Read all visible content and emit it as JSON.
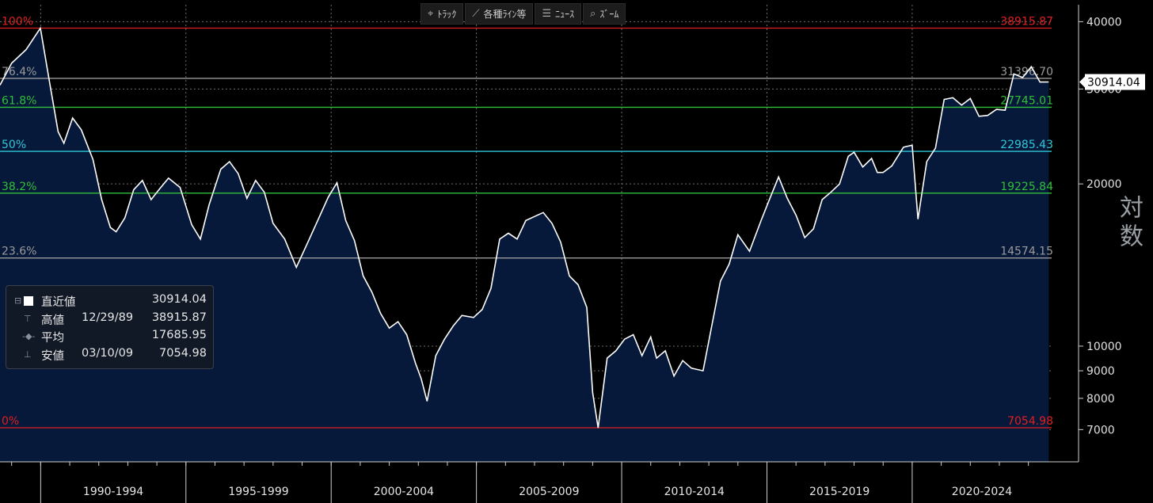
{
  "toolbar": [
    {
      "icon": "crosshair-icon",
      "glyph": "⌖",
      "label": "ﾄﾗｯｸ"
    },
    {
      "icon": "line-tool-icon",
      "glyph": "⟋",
      "label": "各種ﾗｲﾝ等"
    },
    {
      "icon": "news-icon",
      "glyph": "☰",
      "label": "ﾆｭｰｽ"
    },
    {
      "icon": "zoom-icon",
      "glyph": "⌕",
      "label": "ｽﾞｰﾑ"
    }
  ],
  "scale_label": "対数",
  "legend": {
    "last": {
      "label": "直近値",
      "value": "30914.04"
    },
    "high": {
      "label": "高値",
      "date": "12/29/89",
      "value": "38915.87"
    },
    "average": {
      "label": "平均",
      "value": "17685.95"
    },
    "low": {
      "label": "安値",
      "date": "03/10/09",
      "value": "7054.98"
    }
  },
  "chart_data": {
    "type": "area",
    "scale": "log",
    "ylim": [
      6100,
      43000
    ],
    "y_ticks": [
      40000,
      30000,
      20000,
      10000,
      9000,
      8000,
      7000
    ],
    "x_range": [
      1988.6,
      2024.8
    ],
    "x_period_labels": [
      "1990-1994",
      "1995-1999",
      "2000-2004",
      "2005-2009",
      "2010-2014",
      "2015-2019",
      "2020-2024"
    ],
    "last_value_label": "30914.04",
    "colors": {
      "background": "#000000",
      "area_fill": "#07193a",
      "line": "#ffffff"
    },
    "fibonacci_levels": [
      {
        "pct": "100%",
        "value": 38915.87,
        "value_label": "38915.87",
        "color": "#e02020"
      },
      {
        "pct": "76.4%",
        "value": 31396.7,
        "value_label": "31396.70",
        "color": "#9a9a9a"
      },
      {
        "pct": "61.8%",
        "value": 27745.01,
        "value_label": "27745.01",
        "color": "#2fbf3a"
      },
      {
        "pct": "50%",
        "value": 22985.43,
        "value_label": "22985.43",
        "color": "#2ec8d8"
      },
      {
        "pct": "38.2%",
        "value": 19225.84,
        "value_label": "19225.84",
        "color": "#2fbf3a"
      },
      {
        "pct": "23.6%",
        "value": 14574.15,
        "value_label": "14574.15",
        "color": "#9a9a9a"
      },
      {
        "pct": "0%",
        "value": 7054.98,
        "value_label": "7054.98",
        "color": "#e02020"
      }
    ],
    "series": [
      {
        "x": [
          1988.6,
          1989.0,
          1989.5,
          1989.99,
          1990.3,
          1990.6,
          1990.8,
          1991.1,
          1991.4,
          1991.8,
          1992.1,
          1992.4,
          1992.6,
          1992.9,
          1993.2,
          1993.5,
          1993.8,
          1994.1,
          1994.4,
          1994.8,
          1995.2,
          1995.5,
          1995.8,
          1996.2,
          1996.5,
          1996.8,
          1997.1,
          1997.4,
          1997.7,
          1998.0,
          1998.4,
          1998.8,
          1999.2,
          1999.6,
          1999.9,
          2000.2,
          2000.5,
          2000.8,
          2001.1,
          2001.4,
          2001.7,
          2002.0,
          2002.3,
          2002.6,
          2002.9,
          2003.1,
          2003.3,
          2003.6,
          2003.9,
          2004.2,
          2004.5,
          2004.9,
          2005.2,
          2005.5,
          2005.8,
          2006.1,
          2006.4,
          2006.7,
          2007.0,
          2007.3,
          2007.6,
          2007.9,
          2008.2,
          2008.5,
          2008.8,
          2009.0,
          2009.19,
          2009.5,
          2009.8,
          2010.1,
          2010.4,
          2010.7,
          2011.0,
          2011.2,
          2011.5,
          2011.8,
          2012.1,
          2012.4,
          2012.8,
          2013.1,
          2013.4,
          2013.7,
          2014.0,
          2014.4,
          2014.8,
          2015.1,
          2015.4,
          2015.7,
          2016.0,
          2016.3,
          2016.6,
          2016.9,
          2017.2,
          2017.5,
          2017.8,
          2018.0,
          2018.3,
          2018.6,
          2018.8,
          2019.0,
          2019.3,
          2019.7,
          2020.0,
          2020.2,
          2020.5,
          2020.8,
          2021.1,
          2021.4,
          2021.7,
          2022.0,
          2022.3,
          2022.6,
          2022.9,
          2023.2,
          2023.5,
          2023.8,
          2024.1,
          2024.4,
          2024.7
        ],
        "y": [
          30500,
          33500,
          35500,
          38915,
          31000,
          25000,
          23800,
          26500,
          25200,
          22200,
          18700,
          16600,
          16300,
          17300,
          19500,
          20300,
          18700,
          19600,
          20500,
          19700,
          16800,
          15800,
          18300,
          21300,
          22000,
          20900,
          18800,
          20300,
          19300,
          16900,
          15800,
          14000,
          15600,
          17400,
          18900,
          20100,
          17100,
          15700,
          13500,
          12600,
          11500,
          10800,
          11100,
          10500,
          9300,
          8700,
          7900,
          9600,
          10300,
          10900,
          11400,
          11300,
          11700,
          12800,
          15800,
          16200,
          15800,
          17100,
          17400,
          17700,
          16900,
          15600,
          13500,
          13000,
          11800,
          8200,
          7054,
          9500,
          9800,
          10300,
          10500,
          9600,
          10400,
          9500,
          9800,
          8800,
          9400,
          9100,
          9000,
          10900,
          13200,
          14200,
          16100,
          15000,
          17100,
          18800,
          20600,
          18800,
          17500,
          15900,
          16500,
          18700,
          19300,
          20000,
          22500,
          22900,
          21500,
          22300,
          21000,
          21000,
          21600,
          23400,
          23600,
          17200,
          22000,
          23300,
          28700,
          28900,
          28000,
          28800,
          26700,
          26800,
          27500,
          27400,
          32000,
          31500,
          33000,
          30900,
          30914
        ]
      }
    ]
  }
}
